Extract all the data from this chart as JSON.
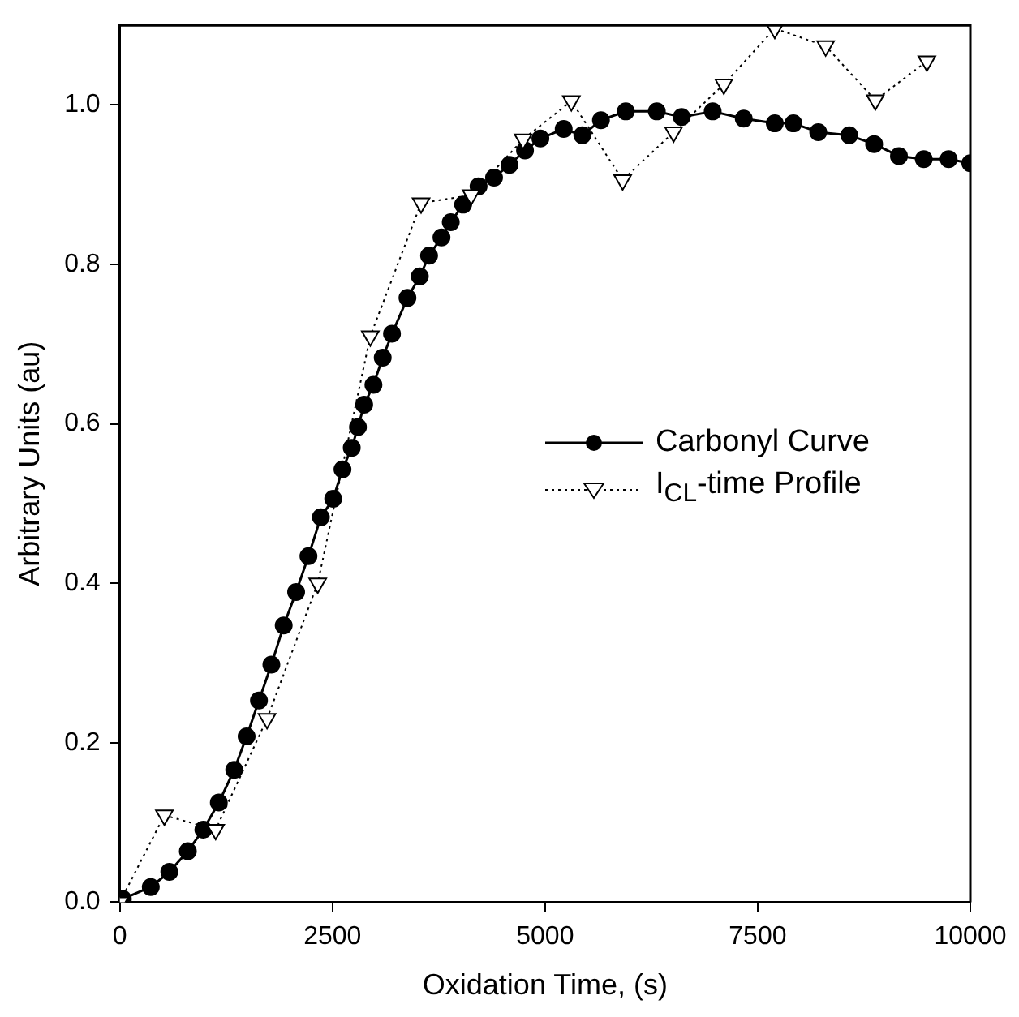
{
  "chart_data": {
    "type": "line",
    "xlabel": "Oxidation Time, (s)",
    "ylabel": "Arbitrary Units (au)",
    "xlim": [
      0,
      10000
    ],
    "xticks": [
      0,
      2500,
      5000,
      7500,
      10000
    ],
    "ylim": [
      0,
      1.1
    ],
    "yticks": [
      {
        "value": 0,
        "label": "0.0"
      },
      {
        "value": 0.2,
        "label": "0.2"
      },
      {
        "value": 0.4,
        "label": "0.4"
      },
      {
        "value": 0.6,
        "label": "0.6"
      },
      {
        "value": 0.8,
        "label": "0.8"
      },
      {
        "value": 1,
        "label": "1.0"
      }
    ],
    "grid": false,
    "legend": "right",
    "series": [
      {
        "name": "Carbonyl Curve",
        "color": "#000000",
        "marker": "circle",
        "line_style": "solid",
        "x": [
          36,
          364,
          582,
          800,
          982,
          1164,
          1345,
          1491,
          1636,
          1782,
          1927,
          2073,
          2218,
          2364,
          2509,
          2618,
          2727,
          2800,
          2873,
          2982,
          3091,
          3200,
          3382,
          3527,
          3636,
          3782,
          3891,
          4036,
          4218,
          4400,
          4582,
          4764,
          4945,
          5219,
          5438,
          5657,
          5949,
          6314,
          6606,
          6971,
          7336,
          7701,
          7920,
          8212,
          8577,
          8869,
          9161,
          9453,
          9745,
          10000
        ],
        "values": [
          0.004,
          0.019,
          0.038,
          0.064,
          0.091,
          0.125,
          0.166,
          0.208,
          0.253,
          0.298,
          0.347,
          0.389,
          0.434,
          0.483,
          0.506,
          0.543,
          0.57,
          0.596,
          0.624,
          0.649,
          0.683,
          0.713,
          0.758,
          0.785,
          0.811,
          0.834,
          0.853,
          0.875,
          0.898,
          0.909,
          0.925,
          0.943,
          0.958,
          0.97,
          0.962,
          0.981,
          0.992,
          0.992,
          0.985,
          0.992,
          0.983,
          0.977,
          0.977,
          0.966,
          0.962,
          0.951,
          0.936,
          0.932,
          0.932,
          0.927
        ]
      },
      {
        "name": "I$_{CL}$-time Profile",
        "color": "#000000",
        "marker": "triangle",
        "line_style": "dotted",
        "x": [
          0,
          524,
          1127,
          1731,
          2327,
          2945,
          3542,
          4131,
          4742,
          5309,
          5912,
          6511,
          7102,
          7701,
          8299,
          8883,
          9489
        ],
        "values": [
          0,
          0.109,
          0.091,
          0.23,
          0.4,
          0.71,
          0.877,
          0.887,
          0.957,
          1.005,
          0.906,
          0.966,
          1.026,
          1.096,
          1.074,
          1.006,
          1.055
        ]
      }
    ]
  }
}
